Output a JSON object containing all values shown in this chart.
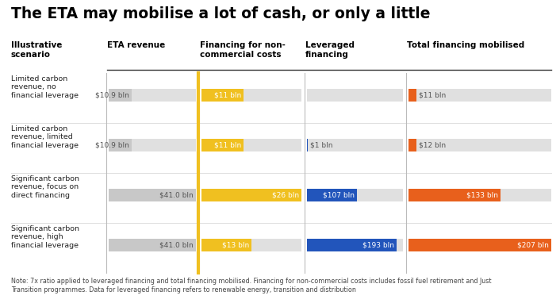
{
  "title": "The ETA may mobilise a lot of cash, or only a little",
  "note": "Note: 7x ratio applied to leveraged financing and total financing mobilised. Financing for non-commercial costs includes fossil fuel retirement and Just\nTransition programmes. Data for leveraged financing refers to renewable energy, transition and distribution",
  "col_headers": [
    "Illustrative\nscenario",
    "ETA revenue",
    "Financing for non-\ncommercial costs",
    "Leveraged\nfinancing",
    "Total financing mobilised"
  ],
  "scenarios": [
    "Limited carbon\nrevenue, no\nfinancial leverage",
    "Limited carbon\nrevenue, limited\nfinancial leverage",
    "Significant carbon\nrevenue, focus on\ndirect financing",
    "Significant carbon\nrevenue, high\nfinancial leverage"
  ],
  "eta_revenue": [
    10.9,
    10.9,
    41.0,
    41.0
  ],
  "eta_revenue_labels": [
    "$10.9 bln",
    "$10.9 bln",
    "$41.0 bln",
    "$41.0 bln"
  ],
  "financing_noncom": [
    11,
    11,
    26,
    13
  ],
  "financing_noncom_labels": [
    "$11 bln",
    "$11 bln",
    "$26 bln",
    "$13 bln"
  ],
  "leveraged": [
    0,
    1,
    107,
    193
  ],
  "leveraged_labels": [
    "",
    "$1 bln",
    "$107 bln",
    "$193 bln"
  ],
  "total": [
    11,
    12,
    133,
    207
  ],
  "total_labels": [
    "$11 bln",
    "$12 bln",
    "$133 bln",
    "$207 bln"
  ],
  "color_eta": "#c8c8c8",
  "color_financing": "#f0c020",
  "color_leveraged": "#2255bb",
  "color_total": "#e8601c",
  "color_bg_bar": "#e0e0e0",
  "color_yellow_line": "#f0c020",
  "bg_color": "#ffffff",
  "max_eta": 41.0,
  "max_fin": 26.0,
  "max_lev": 207.0,
  "max_tot": 207.0
}
